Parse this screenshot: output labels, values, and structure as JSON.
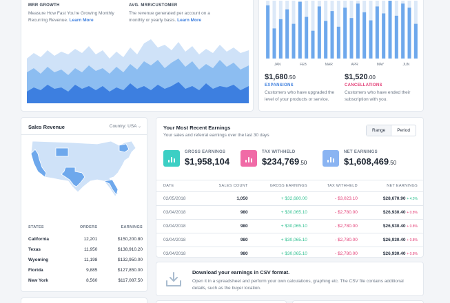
{
  "mrr": {
    "label": "MRR GROWTH",
    "desc": "Measure How Fast You're Growing Monthly Recurring Revenue.",
    "link": "Learn More"
  },
  "avg": {
    "label": "AVG. MRR/CUSTOMER",
    "desc": "The revenue generated per account on a monthly or yearly basis.",
    "link": "Learn More"
  },
  "bars": {
    "months": [
      "JAN",
      "FEB",
      "MAR",
      "APR",
      "MAY",
      "JUN"
    ],
    "values": [
      92,
      52,
      68,
      85,
      60,
      98,
      72,
      48,
      90,
      65,
      82,
      55,
      88,
      70,
      95,
      80,
      66,
      90,
      78,
      100,
      74,
      95,
      88,
      60
    ],
    "color": "#6ea8ec",
    "track": "#dce9f8"
  },
  "expansions": {
    "amount": "$1,680",
    "cents": ".50",
    "label": "EXPANSIONS",
    "desc": "Customers who have upgraded the level of your products or service."
  },
  "cancellations": {
    "amount": "$1,520",
    "cents": ".00",
    "label": "CANCELLATIONS",
    "desc": "Customers who have ended their subscription with you."
  },
  "sales": {
    "title": "Sales Revenue",
    "country_label": "Country:",
    "country_value": "USA",
    "headers": [
      "STATES",
      "ORDERS",
      "EARNINGS"
    ],
    "rows": [
      {
        "state": "California",
        "orders": "12,201",
        "earnings": "$150,200.80"
      },
      {
        "state": "Texas",
        "orders": "11,950",
        "earnings": "$138,910.20"
      },
      {
        "state": "Wyoming",
        "orders": "11,198",
        "earnings": "$132,950.00"
      },
      {
        "state": "Florida",
        "orders": "9,885",
        "earnings": "$127,850.00"
      },
      {
        "state": "New York",
        "orders": "8,560",
        "earnings": "$117,087.50"
      }
    ]
  },
  "earnings": {
    "title": "Your Most Recent Earnings",
    "subtitle": "Your sales and referral earnings over the last 30 days",
    "btn_range": "Range",
    "btn_period": "Period",
    "gross": {
      "label": "GROSS EARNINGS",
      "amount": "$1,958,104",
      "color": "#3ccfc4"
    },
    "tax": {
      "label": "TAX WITHHELD",
      "amount": "$234,769",
      "cents": ".50",
      "color": "#f06aa6"
    },
    "net": {
      "label": "NET EARNINGS",
      "amount": "$1,608,469",
      "cents": ".50",
      "color": "#8ab4f2"
    },
    "headers": [
      "DATE",
      "SALES COUNT",
      "GROSS EARNINGS",
      "TAX WITHHELD",
      "NET EARNINGS"
    ],
    "rows": [
      {
        "date": "02/05/2018",
        "count": "1,050",
        "gross": "+ $32,680.00",
        "tax": "- $3,023.10",
        "net": "$28,670.90",
        "pct": "+ 4.5%",
        "pct_up": true
      },
      {
        "date": "03/04/2018",
        "count": "980",
        "gross": "+ $30,065.10",
        "tax": "- $2,780.00",
        "net": "$26,930.40",
        "pct": "+ 0.8%",
        "pct_up": false
      },
      {
        "date": "03/04/2018",
        "count": "980",
        "gross": "+ $30,065.10",
        "tax": "- $2,780.00",
        "net": "$26,930.40",
        "pct": "+ 0.8%",
        "pct_up": false
      },
      {
        "date": "03/04/2018",
        "count": "980",
        "gross": "+ $30,065.10",
        "tax": "- $2,780.00",
        "net": "$26,930.40",
        "pct": "+ 0.8%",
        "pct_up": false
      },
      {
        "date": "03/04/2018",
        "count": "980",
        "gross": "+ $30,065.10",
        "tax": "- $2,780.00",
        "net": "$26,930.40",
        "pct": "+ 0.8%",
        "pct_up": false
      }
    ]
  },
  "csv": {
    "title": "Download your earnings in CSV format.",
    "desc": "Open it in a spreadsheet and perform your own calculations, graphing etc. The CSV file contains additional details, such as the buyer location."
  }
}
